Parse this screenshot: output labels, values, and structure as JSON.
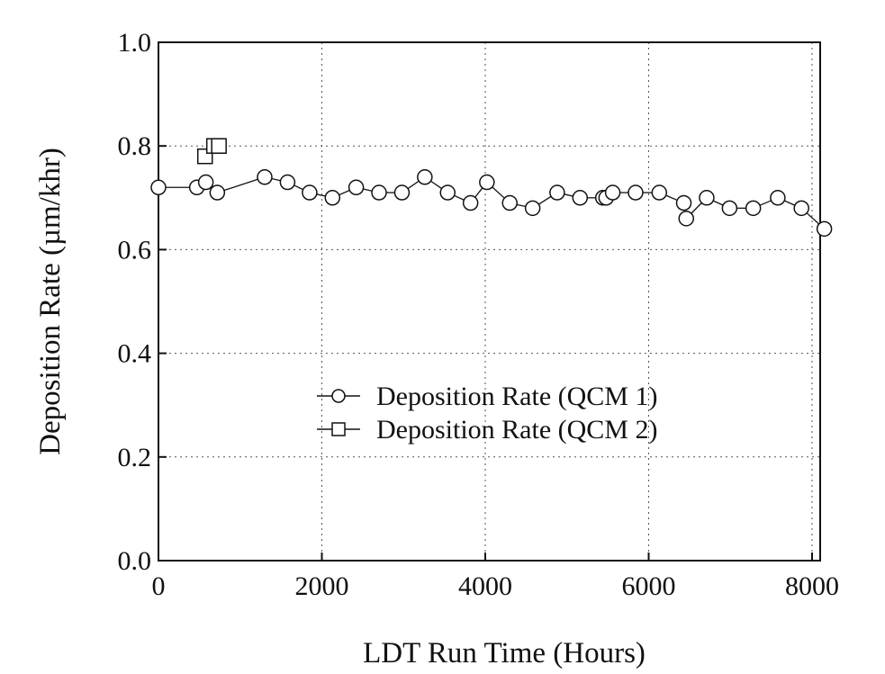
{
  "chart_data": {
    "type": "scatter",
    "xlabel": "LDT Run Time (Hours)",
    "ylabel": "Deposition Rate (µm/khr)",
    "xlim": [
      0,
      8200
    ],
    "ylim": [
      0,
      1.0
    ],
    "x_ticks": [
      "0",
      "2000",
      "4000",
      "6000",
      "8000"
    ],
    "y_ticks": [
      "0.0",
      "0.2",
      "0.4",
      "0.6",
      "0.8",
      "1.0"
    ],
    "grid": true,
    "legend_position": "lower-right",
    "series": [
      {
        "name": "Deposition Rate (QCM 1)",
        "marker": "circle",
        "x": [
          0,
          470,
          580,
          720,
          1300,
          1580,
          1850,
          2130,
          2420,
          2700,
          2980,
          3260,
          3540,
          3820,
          4020,
          4300,
          4580,
          4880,
          5160,
          5440,
          5480,
          5560,
          5840,
          6130,
          6430,
          6460,
          6710,
          6990,
          7280,
          7580,
          7870,
          8150
        ],
        "y": [
          0.72,
          0.72,
          0.73,
          0.71,
          0.74,
          0.73,
          0.71,
          0.7,
          0.72,
          0.71,
          0.71,
          0.74,
          0.71,
          0.69,
          0.73,
          0.69,
          0.68,
          0.71,
          0.7,
          0.7,
          0.7,
          0.71,
          0.71,
          0.71,
          0.69,
          0.66,
          0.7,
          0.68,
          0.68,
          0.7,
          0.68,
          0.64
        ]
      },
      {
        "name": "Deposition Rate (QCM 2)",
        "marker": "square",
        "x": [
          570,
          680,
          740
        ],
        "y": [
          0.78,
          0.8,
          0.8
        ]
      }
    ]
  }
}
